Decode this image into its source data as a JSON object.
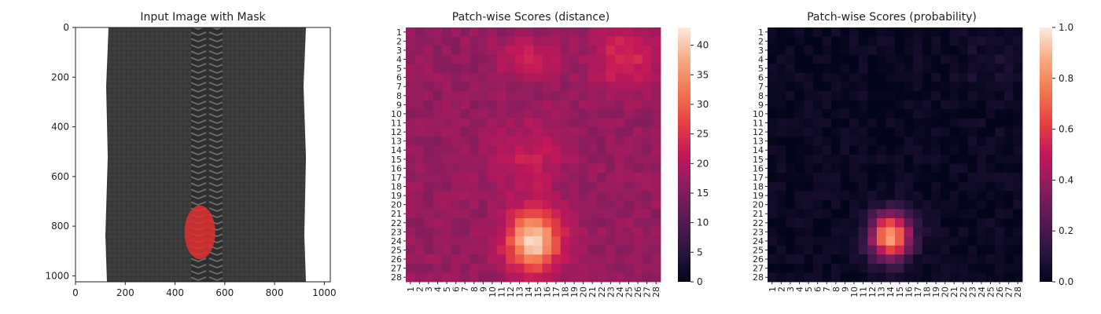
{
  "chart_data": [
    {
      "type": "image",
      "title": "Input Image with Mask",
      "xlim": [
        0,
        1024
      ],
      "ylim": [
        1024,
        0
      ],
      "xticks": [
        "0",
        "200",
        "400",
        "600",
        "800",
        "1000"
      ],
      "yticks": [
        "0",
        "200",
        "400",
        "600",
        "800",
        "1000"
      ],
      "mask_color": "#e03030",
      "fabric_color": "#3a3a3a",
      "zipper_color": "#555555",
      "mask_region": {
        "center_x": 500,
        "center_y": 825,
        "radius_x": 62,
        "radius_y": 108
      }
    },
    {
      "type": "heatmap",
      "title": "Patch-wise Scores (distance)",
      "rows": [
        "1",
        "2",
        "3",
        "4",
        "5",
        "6",
        "7",
        "8",
        "9",
        "10",
        "11",
        "12",
        "13",
        "14",
        "15",
        "16",
        "17",
        "18",
        "19",
        "20",
        "21",
        "22",
        "23",
        "24",
        "25",
        "26",
        "27",
        "28"
      ],
      "cols": [
        "1",
        "2",
        "3",
        "4",
        "5",
        "6",
        "7",
        "8",
        "9",
        "10",
        "11",
        "12",
        "13",
        "14",
        "15",
        "16",
        "17",
        "18",
        "19",
        "20",
        "21",
        "22",
        "23",
        "24",
        "25",
        "26",
        "27",
        "28"
      ],
      "background_value": 17,
      "hotspots": [
        {
          "row": 24,
          "col": 14.5,
          "sigma_row": 2.2,
          "sigma_col": 2.0,
          "amp": 25
        },
        {
          "row": 4,
          "col": 24.5,
          "sigma_row": 2.5,
          "sigma_col": 2.5,
          "amp": 7
        },
        {
          "row": 4,
          "col": 14,
          "sigma_row": 1.5,
          "sigma_col": 2.0,
          "amp": 6
        },
        {
          "row": 15,
          "col": 14,
          "sigma_row": 3.0,
          "sigma_col": 2.5,
          "amp": 5
        }
      ],
      "colorbar": {
        "min": 0,
        "max": 43,
        "ticks": [
          "0",
          "5",
          "10",
          "15",
          "20",
          "25",
          "30",
          "35",
          "40"
        ]
      }
    },
    {
      "type": "heatmap",
      "title": "Patch-wise Scores (probability)",
      "rows": [
        "1",
        "2",
        "3",
        "4",
        "5",
        "6",
        "7",
        "8",
        "9",
        "10",
        "11",
        "12",
        "13",
        "14",
        "15",
        "16",
        "17",
        "18",
        "19",
        "20",
        "21",
        "22",
        "23",
        "24",
        "25",
        "26",
        "27",
        "28"
      ],
      "cols": [
        "1",
        "2",
        "3",
        "4",
        "5",
        "6",
        "7",
        "8",
        "9",
        "10",
        "11",
        "12",
        "13",
        "14",
        "15",
        "16",
        "17",
        "18",
        "19",
        "20",
        "21",
        "22",
        "23",
        "24",
        "25",
        "26",
        "27",
        "28"
      ],
      "background_value": 0.02,
      "hotspots": [
        {
          "row": 23.5,
          "col": 14,
          "sigma_row": 1.8,
          "sigma_col": 1.6,
          "amp": 0.85
        },
        {
          "row": 5,
          "col": 25,
          "sigma_row": 2.5,
          "sigma_col": 2.5,
          "amp": 0.05
        }
      ],
      "colorbar": {
        "min": 0.0,
        "max": 1.0,
        "ticks": [
          "0.0",
          "0.2",
          "0.4",
          "0.6",
          "0.8",
          "1.0"
        ]
      }
    }
  ]
}
